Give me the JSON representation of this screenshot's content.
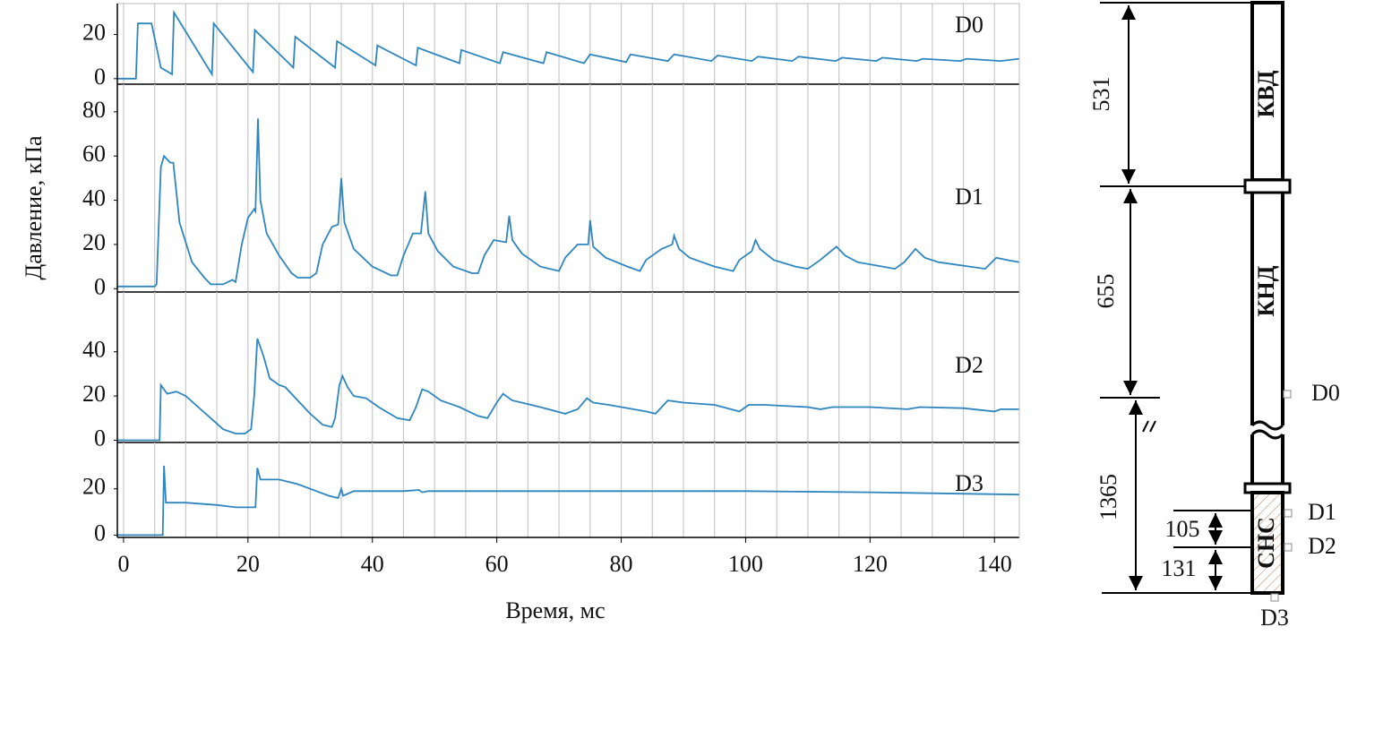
{
  "shared_axes": {
    "xlabel": "Время, мс",
    "ylabel": "Давление, кПа",
    "xlim": [
      -1,
      144
    ],
    "xticks": [
      0,
      20,
      40,
      60,
      80,
      100,
      120,
      140
    ],
    "xgrid": [
      0,
      5,
      10,
      15,
      20,
      25,
      30,
      35,
      40,
      45,
      50,
      55,
      60,
      65,
      70,
      75,
      80,
      85,
      90,
      95,
      100,
      105,
      110,
      115,
      120,
      125,
      130,
      135,
      140
    ]
  },
  "chart_data": [
    {
      "type": "line",
      "label": "D0",
      "ylim": [
        -2.5,
        34
      ],
      "yticks": [
        0,
        20
      ],
      "x": [
        -1,
        2,
        2.3,
        4.5,
        6,
        7.8,
        8.1,
        14.2,
        14.5,
        20.8,
        21.1,
        27.3,
        27.6,
        34,
        34.3,
        40.5,
        40.8,
        47,
        47.3,
        54,
        54.3,
        60.5,
        61,
        67.5,
        68,
        74,
        75,
        80.8,
        81.5,
        87.5,
        88.5,
        94.5,
        95.5,
        101,
        102,
        107.5,
        108.5,
        114.5,
        115.5,
        121,
        122,
        127.5,
        128.5,
        134.5,
        135.5,
        141,
        144
      ],
      "series": [
        {
          "color": "#2f86bf",
          "values": [
            0,
            0,
            25,
            25,
            5,
            2,
            30,
            2,
            25,
            3,
            22,
            5,
            19,
            5,
            17,
            6,
            15,
            6,
            14,
            7,
            13,
            7,
            12,
            7,
            12,
            7,
            11,
            7.5,
            11,
            8,
            11,
            8,
            10.5,
            8,
            10,
            8,
            10,
            8,
            9.5,
            8,
            9.5,
            8,
            9,
            8,
            9,
            8,
            9
          ]
        }
      ]
    },
    {
      "type": "line",
      "label": "D1",
      "ylim": [
        -1.5,
        92.5
      ],
      "yticks": [
        0,
        20,
        40,
        60,
        80
      ],
      "x": [
        -1,
        5,
        5.3,
        6,
        6.5,
        7.5,
        8,
        9,
        11,
        13,
        14,
        16,
        17.5,
        18,
        19,
        20,
        21,
        21.2,
        21.6,
        22,
        23,
        25,
        27,
        28,
        30,
        31,
        32,
        33.5,
        34.5,
        35,
        35.5,
        37,
        40,
        43,
        44,
        45,
        46.5,
        47.8,
        48.5,
        49,
        50.5,
        53,
        56,
        57,
        58,
        59.5,
        61.5,
        62,
        62.5,
        64,
        67,
        70,
        71,
        73,
        74.7,
        75,
        75.5,
        77.5,
        81,
        83,
        84,
        86.5,
        88.2,
        88.5,
        89.3,
        91,
        95,
        98,
        99,
        101,
        101.6,
        102.3,
        104.5,
        108,
        110,
        112,
        114.6,
        116,
        118,
        122,
        124,
        125.5,
        127.3,
        128.8,
        131,
        136,
        138.5,
        140.3,
        142,
        144
      ],
      "series": [
        {
          "color": "#2f86bf",
          "values": [
            1,
            1,
            2,
            55,
            60,
            57,
            57,
            30,
            12,
            5,
            2,
            2,
            4,
            3,
            20,
            32,
            36,
            35,
            77,
            40,
            25,
            15,
            7,
            5,
            5,
            7,
            20,
            28,
            29,
            50,
            30,
            18,
            10,
            6,
            6,
            15,
            25,
            25,
            44,
            25,
            17,
            10,
            7,
            7,
            15,
            22,
            21,
            33,
            22,
            16,
            10,
            8,
            14,
            20,
            20,
            31,
            19,
            14,
            10,
            8,
            13,
            18,
            20,
            24,
            18,
            14,
            10,
            8,
            13,
            17,
            22,
            18,
            13,
            10,
            9,
            13,
            19,
            15,
            12,
            10,
            9,
            12,
            18,
            14,
            12,
            10,
            9,
            14,
            13,
            12
          ]
        }
      ]
    },
    {
      "type": "line",
      "label": "D2",
      "ylim": [
        -1,
        67
      ],
      "yticks": [
        0,
        20,
        40
      ],
      "x": [
        -1,
        5.8,
        6,
        7,
        8.5,
        10,
        12,
        14,
        16,
        18,
        19.5,
        20.5,
        21,
        21.5,
        22.5,
        23.5,
        25,
        26,
        28,
        30,
        32,
        33.5,
        34,
        34.7,
        35.2,
        36,
        37,
        39,
        41,
        44,
        46,
        47,
        48,
        49,
        51,
        54,
        57,
        58.5,
        60,
        61,
        62.5,
        64,
        67,
        71,
        73,
        74.5,
        75.5,
        78,
        84,
        85.5,
        86.5,
        87.5,
        90,
        95,
        99,
        100.5,
        103,
        110,
        112,
        114,
        120,
        126,
        128,
        135,
        140,
        141,
        144
      ],
      "series": [
        {
          "color": "#2f86bf",
          "values": [
            0,
            0,
            25,
            21,
            22,
            20,
            15,
            10,
            5,
            3,
            3,
            5,
            20,
            46,
            38,
            28,
            25,
            24,
            18,
            12,
            7,
            6,
            10,
            25,
            29,
            24,
            20,
            19,
            15,
            10,
            9,
            15,
            23,
            22,
            18,
            15,
            11,
            10,
            17,
            21,
            18,
            17,
            15,
            12,
            14,
            19,
            17,
            16,
            13,
            12,
            15,
            18,
            17,
            16,
            13,
            16,
            16,
            15,
            14,
            15,
            15,
            14,
            15,
            14.5,
            13,
            14,
            14
          ]
        }
      ]
    },
    {
      "type": "line",
      "label": "D3",
      "ylim": [
        -1,
        40
      ],
      "yticks": [
        0,
        20
      ],
      "x": [
        -1,
        6.3,
        6.5,
        6.8,
        10,
        15,
        18,
        21.2,
        21.5,
        22,
        25,
        28,
        31,
        33,
        34.5,
        35,
        35.3,
        37,
        45,
        47.5,
        48,
        49,
        60,
        80,
        100,
        120,
        144
      ],
      "series": [
        {
          "color": "#2f86bf",
          "values": [
            0,
            0,
            30,
            14,
            14,
            13,
            12,
            12,
            29,
            24,
            24,
            22,
            19,
            17,
            16,
            20,
            17,
            19,
            19,
            19.5,
            18.5,
            19,
            19,
            19,
            19,
            18.5,
            17.5
          ]
        }
      ]
    }
  ],
  "diagram": {
    "sections": [
      "КВД",
      "КНД",
      "СНС"
    ],
    "dimensions": [
      531,
      655,
      1365,
      105,
      131
    ],
    "sensors": [
      "D0",
      "D1",
      "D2",
      "D3"
    ]
  }
}
